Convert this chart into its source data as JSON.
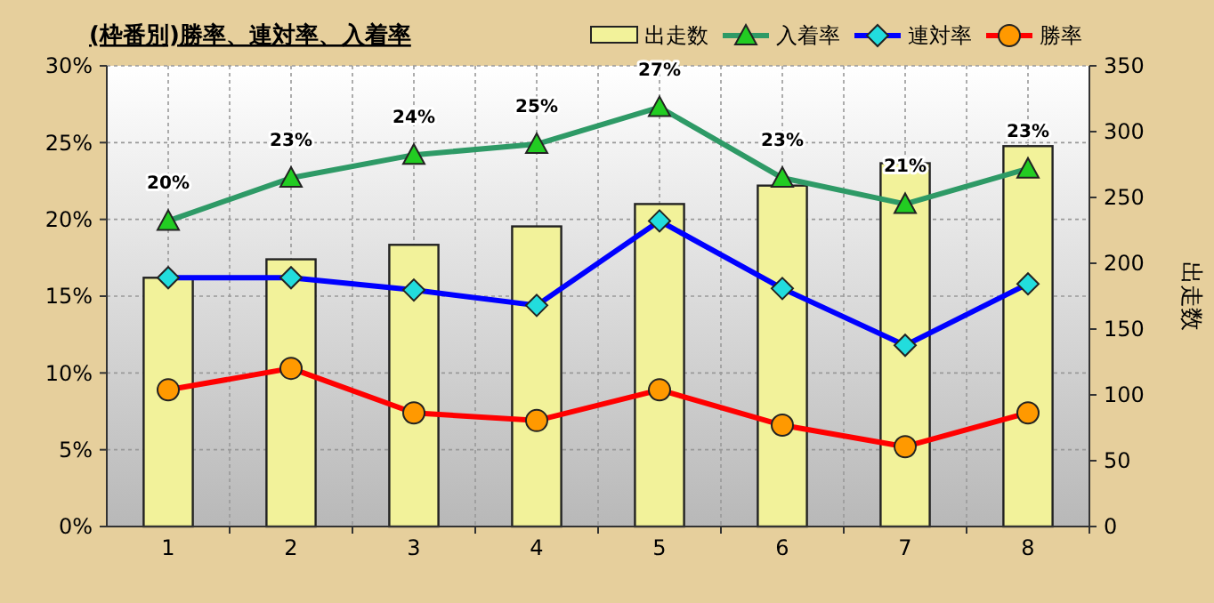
{
  "chart_data": {
    "type": "bar",
    "title": "(枠番別)勝率、連対率、入着率",
    "y2label": "出走数",
    "categories": [
      "1",
      "2",
      "3",
      "4",
      "5",
      "6",
      "7",
      "8"
    ],
    "series": [
      {
        "name": "出走数",
        "axis": "y2",
        "color": "#f2f29a",
        "values": [
          189,
          203,
          214,
          228,
          245,
          259,
          276,
          289
        ]
      },
      {
        "name": "入着率",
        "type": "line",
        "color": "#2e9a66",
        "marker": "triangle",
        "values": [
          19.9,
          22.7,
          24.2,
          24.9,
          27.3,
          22.7,
          21.0,
          23.3
        ],
        "value_labels": [
          "20%",
          "23%",
          "24%",
          "25%",
          "27%",
          "23%",
          "21%",
          "23%"
        ]
      },
      {
        "name": "連対率",
        "type": "line",
        "color": "#0000ff",
        "marker": "diamond",
        "values": [
          16.2,
          16.2,
          15.4,
          14.4,
          19.9,
          15.5,
          11.8,
          15.8
        ]
      },
      {
        "name": "勝率",
        "type": "line",
        "color": "#ff0000",
        "marker": "circle",
        "values": [
          8.9,
          10.3,
          7.4,
          6.9,
          8.9,
          6.6,
          5.2,
          7.4
        ]
      }
    ],
    "ylim": [
      0,
      30
    ],
    "yticks": [
      {
        "value": 0,
        "label": "0%"
      },
      {
        "value": 5,
        "label": "5%"
      },
      {
        "value": 10,
        "label": "10%"
      },
      {
        "value": 15,
        "label": "15%"
      },
      {
        "value": 20,
        "label": "20%"
      },
      {
        "value": 25,
        "label": "25%"
      },
      {
        "value": 30,
        "label": "30%"
      }
    ],
    "y2lim": [
      0,
      350
    ],
    "y2ticks": [
      0,
      50,
      100,
      150,
      200,
      250,
      300,
      350
    ],
    "grid": true,
    "legend": "top right"
  }
}
